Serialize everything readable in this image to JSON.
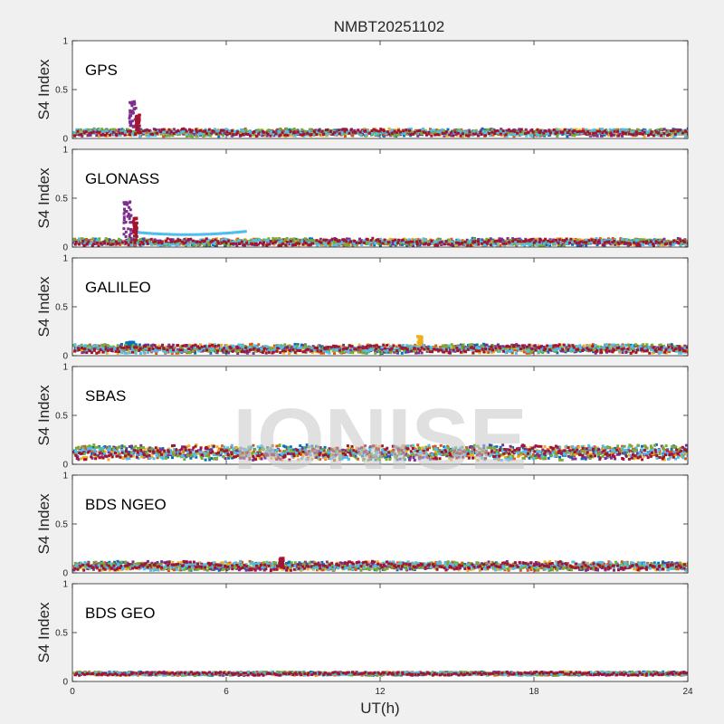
{
  "chart_data": {
    "type": "scatter",
    "title": "NMBT20251102",
    "xlabel": "UT(h)",
    "ylabel": "S4 Index",
    "xlim": [
      0,
      24
    ],
    "ylim": [
      0,
      1
    ],
    "x_ticks": [
      0,
      6,
      12,
      18,
      24
    ],
    "y_ticks": [
      0,
      0.5,
      1
    ],
    "watermark": "IONISE",
    "series_colors": [
      "#0072BD",
      "#D95319",
      "#EDB120",
      "#7E2F8E",
      "#77AC30",
      "#4DBEEE",
      "#A2142F"
    ],
    "panels": [
      {
        "name": "GPS",
        "base": 0.06,
        "noise": 0.025,
        "events": [
          {
            "x": 2.3,
            "width": 0.25,
            "peak": 0.38,
            "series": 3
          },
          {
            "x": 2.5,
            "width": 0.15,
            "peak": 0.25,
            "series": 6
          }
        ]
      },
      {
        "name": "GLONASS",
        "base": 0.05,
        "noise": 0.025,
        "events": [
          {
            "x": 2.1,
            "width": 0.3,
            "peak": 0.5,
            "series": 3
          },
          {
            "x": 2.4,
            "width": 0.15,
            "peak": 0.3,
            "series": 6
          }
        ],
        "arcs": [
          {
            "x0": 2.5,
            "x1": 6.7,
            "y0": 0.15,
            "ymid": 0.1,
            "y1": 0.16,
            "series": 5
          }
        ]
      },
      {
        "name": "GALILEO",
        "base": 0.07,
        "noise": 0.03,
        "events": [
          {
            "x": 13.5,
            "width": 0.2,
            "peak": 0.2,
            "series": 2
          },
          {
            "x": 2.2,
            "width": 0.4,
            "peak": 0.14,
            "series": 0
          }
        ]
      },
      {
        "name": "SBAS",
        "base": 0.12,
        "noise": 0.05,
        "events": []
      },
      {
        "name": "BDS NGEO",
        "base": 0.07,
        "noise": 0.03,
        "events": [
          {
            "x": 8.1,
            "width": 0.15,
            "peak": 0.15,
            "series": 6
          }
        ]
      },
      {
        "name": "BDS GEO",
        "base": 0.08,
        "noise": 0.012,
        "events": []
      }
    ]
  }
}
